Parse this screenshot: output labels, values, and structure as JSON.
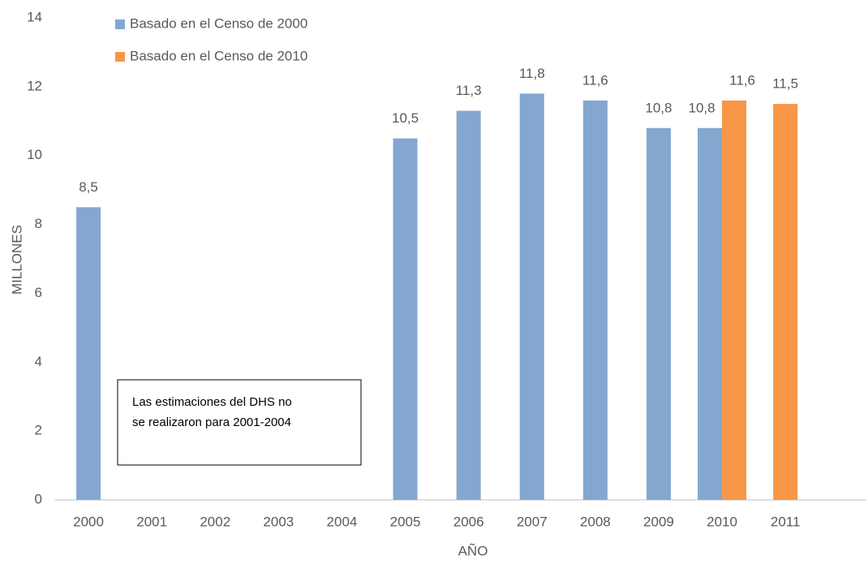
{
  "chart_data": {
    "type": "bar",
    "categories": [
      "2000",
      "2001",
      "2002",
      "2003",
      "2004",
      "2005",
      "2006",
      "2007",
      "2008",
      "2009",
      "2010",
      "2011"
    ],
    "series": [
      {
        "name": "Basado en el Censo de 2000",
        "color": "#83a7cf",
        "values": [
          8.5,
          null,
          null,
          null,
          null,
          10.5,
          11.3,
          11.8,
          11.6,
          10.8,
          10.8,
          null
        ],
        "value_labels": [
          "8,5",
          null,
          null,
          null,
          null,
          "10,5",
          "11,3",
          "11,8",
          "11,6",
          "10,8",
          "10,8",
          null
        ]
      },
      {
        "name": "Basado en el Censo de 2010",
        "color": "#f79646",
        "values": [
          null,
          null,
          null,
          null,
          null,
          null,
          null,
          null,
          null,
          null,
          11.6,
          11.5
        ],
        "value_labels": [
          null,
          null,
          null,
          null,
          null,
          null,
          null,
          null,
          null,
          null,
          "11,6",
          "11,5"
        ]
      }
    ],
    "ylim": [
      0,
      14
    ],
    "yticks": [
      0,
      2,
      4,
      6,
      8,
      10,
      12,
      14
    ],
    "y_label": "MILLONES",
    "x_label": "AÑO",
    "grid": false,
    "legend": "top-left",
    "annotation": [
      "Las estimaciones del DHS  no",
      "se realizaron para 2001-2004"
    ]
  }
}
